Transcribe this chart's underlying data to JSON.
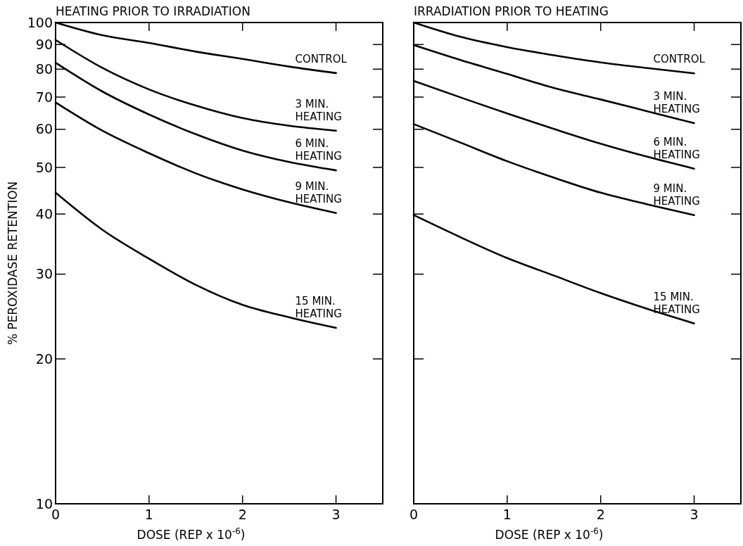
{
  "chart_data": [
    {
      "type": "line",
      "title": "HEATING PRIOR TO IRRADIATION",
      "xlabel": "DOSE (REP x 10$^{-6}$)",
      "ylabel": "% PEROXIDASE RETENTION",
      "log": "y",
      "grid": false,
      "legend": "right",
      "marker": "none",
      "line_style": "solid",
      "x": [
        0,
        0.5,
        1,
        1.5,
        2,
        2.5,
        3
      ],
      "xlim": [
        0,
        3.5
      ],
      "xticks": [
        0,
        1,
        2,
        3
      ],
      "ylim": [
        10,
        100
      ],
      "yticks": [
        10,
        20,
        30,
        40,
        50,
        60,
        70,
        80,
        90,
        100
      ],
      "series": [
        {
          "name": "CONTROL",
          "color": "#000000",
          "values": [
            100,
            94.1,
            90.7,
            87,
            84,
            81,
            78.5
          ]
        },
        {
          "name": "3 MIN. HEATING",
          "color": "#000000",
          "values": [
            92,
            80.5,
            72.6,
            67.2,
            63.3,
            61,
            59.6
          ]
        },
        {
          "name": "6 MIN. HEATING",
          "color": "#000000",
          "values": [
            82.5,
            71.9,
            64.4,
            58.6,
            54.2,
            51.3,
            49.3
          ]
        },
        {
          "name": "9 MIN. HEATING",
          "color": "#000000",
          "values": [
            68.2,
            59.6,
            53.5,
            48.6,
            45,
            42.3,
            40.2
          ]
        },
        {
          "name": "15 MIN. HEATING",
          "color": "#000000",
          "values": [
            44.3,
            37.1,
            32.3,
            28.5,
            25.9,
            24.4,
            23.2
          ]
        }
      ]
    },
    {
      "type": "line",
      "title": "IRRADIATION PRIOR TO HEATING",
      "xlabel": "DOSE (REP x 10$^{-6}$)",
      "log": "y",
      "grid": false,
      "legend": "right",
      "marker": "none",
      "line_style": "solid",
      "tick_labels": "x",
      "x": [
        0,
        0.5,
        1,
        1.5,
        2,
        2.5,
        3
      ],
      "xlim": [
        0,
        3.5
      ],
      "xticks": [
        0,
        1,
        2,
        3
      ],
      "ylim": [
        10,
        100
      ],
      "yticks": [
        10,
        20,
        30,
        40,
        50,
        60,
        70,
        80,
        90,
        100
      ],
      "series": [
        {
          "name": "CONTROL",
          "color": "#000000",
          "values": [
            100,
            93.4,
            88.9,
            85.5,
            82.6,
            80.4,
            78.4
          ]
        },
        {
          "name": "3 MIN. HEATING",
          "color": "#000000",
          "values": [
            89.8,
            83.6,
            78.2,
            73.1,
            69.2,
            65.4,
            61.8
          ]
        },
        {
          "name": "6 MIN. HEATING",
          "color": "#000000",
          "values": [
            75.6,
            69.9,
            64.7,
            60.1,
            56,
            52.6,
            49.7
          ]
        },
        {
          "name": "9 MIN. HEATING",
          "color": "#000000",
          "values": [
            61.5,
            56.3,
            51.5,
            47.6,
            44.3,
            41.9,
            39.8
          ]
        },
        {
          "name": "15 MIN. HEATING",
          "color": "#000000",
          "values": [
            39.8,
            35.8,
            32.4,
            29.8,
            27.4,
            25.4,
            23.7
          ]
        }
      ]
    }
  ]
}
